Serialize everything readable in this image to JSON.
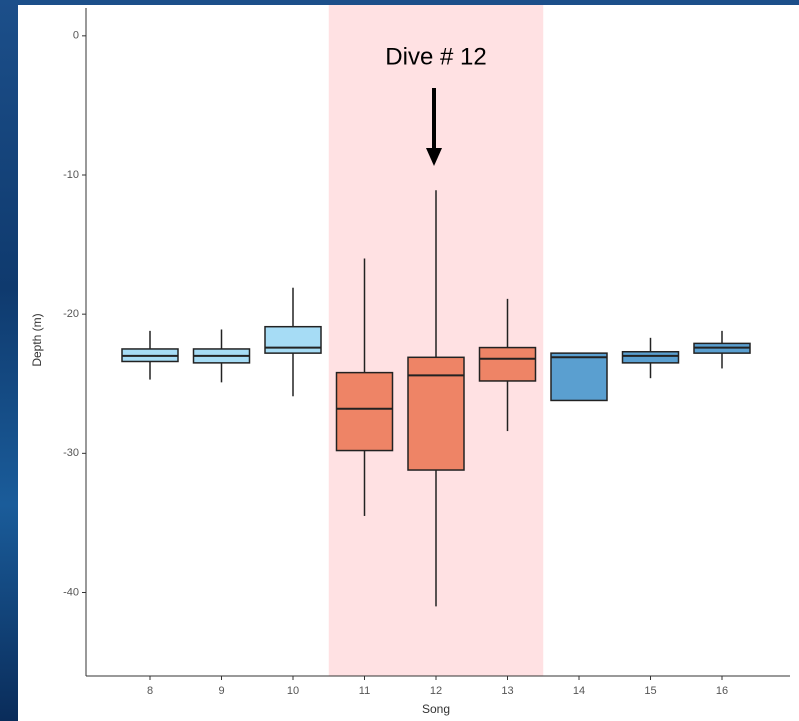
{
  "chart_data": {
    "type": "box",
    "annotation": "Dive # 12",
    "xlabel": "Song",
    "ylabel": "Depth (m)",
    "categories": [
      "8",
      "9",
      "10",
      "11",
      "12",
      "13",
      "14",
      "15",
      "16"
    ],
    "boxes": [
      {
        "whislo": -24.7,
        "q1": -23.4,
        "med": -23.0,
        "q3": -22.5,
        "whishi": -21.2,
        "color": "#a6dcf5"
      },
      {
        "whislo": -24.9,
        "q1": -23.5,
        "med": -23.0,
        "q3": -22.5,
        "whishi": -21.1,
        "color": "#a6dcf5"
      },
      {
        "whislo": -25.9,
        "q1": -22.8,
        "med": -22.4,
        "q3": -20.9,
        "whishi": -18.1,
        "color": "#a6dcf5"
      },
      {
        "whislo": -34.5,
        "q1": -29.8,
        "med": -26.8,
        "q3": -24.2,
        "whishi": -16.0,
        "color": "#ee8466"
      },
      {
        "whislo": -41.0,
        "q1": -31.2,
        "med": -24.4,
        "q3": -23.1,
        "whishi": -11.1,
        "color": "#ee8466"
      },
      {
        "whislo": -28.4,
        "q1": -24.8,
        "med": -23.2,
        "q3": -22.4,
        "whishi": -18.9,
        "color": "#ee8466"
      },
      {
        "whislo": -26.2,
        "q1": -26.2,
        "med": -23.1,
        "q3": -22.8,
        "whishi": -22.8,
        "color": "#5a9fd0"
      },
      {
        "whislo": -24.6,
        "q1": -23.5,
        "med": -23.0,
        "q3": -22.7,
        "whishi": -21.7,
        "color": "#5a9fd0"
      },
      {
        "whislo": -23.9,
        "q1": -22.8,
        "med": -22.4,
        "q3": -22.1,
        "whishi": -21.2,
        "color": "#5a9fd0"
      }
    ],
    "highlight": {
      "from": 3,
      "to": 5,
      "color": "#ffe1e3"
    },
    "ylim": [
      -46,
      2
    ],
    "yticks": [
      0,
      -10,
      -20,
      -30,
      -40
    ]
  }
}
